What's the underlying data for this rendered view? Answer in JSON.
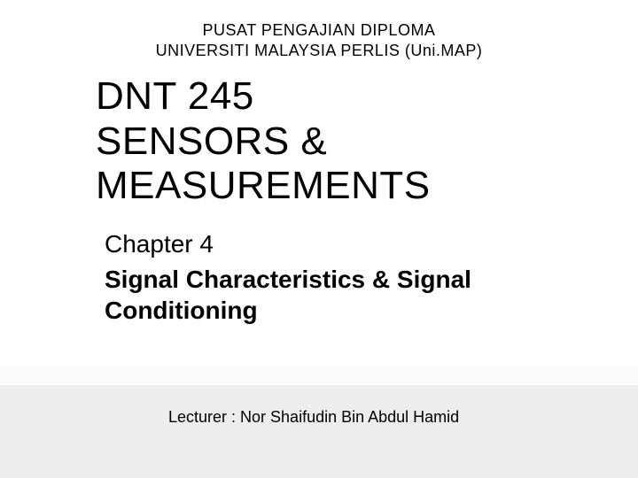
{
  "header": {
    "institution_line1": "PUSAT PENGAJIAN DIPLOMA",
    "institution_line2": "UNIVERSITI MALAYSIA PERLIS (Uni.MAP)"
  },
  "course": {
    "code": "DNT 245",
    "name_line1": "SENSORS &",
    "name_line2": "MEASUREMENTS"
  },
  "chapter": {
    "number_label": "Chapter 4",
    "title_line1": "Signal Characteristics & Signal",
    "title_line2": "Conditioning"
  },
  "lecturer": {
    "label": "Lecturer : Nor Shaifudin Bin Abdul Hamid"
  },
  "styling": {
    "background_color": "#ffffff",
    "text_color": "#000000",
    "bottom_bar_color": "#ededed",
    "header_fontsize": 18,
    "course_fontsize": 44,
    "chapter_fontsize": 28,
    "lecturer_fontsize": 18
  }
}
